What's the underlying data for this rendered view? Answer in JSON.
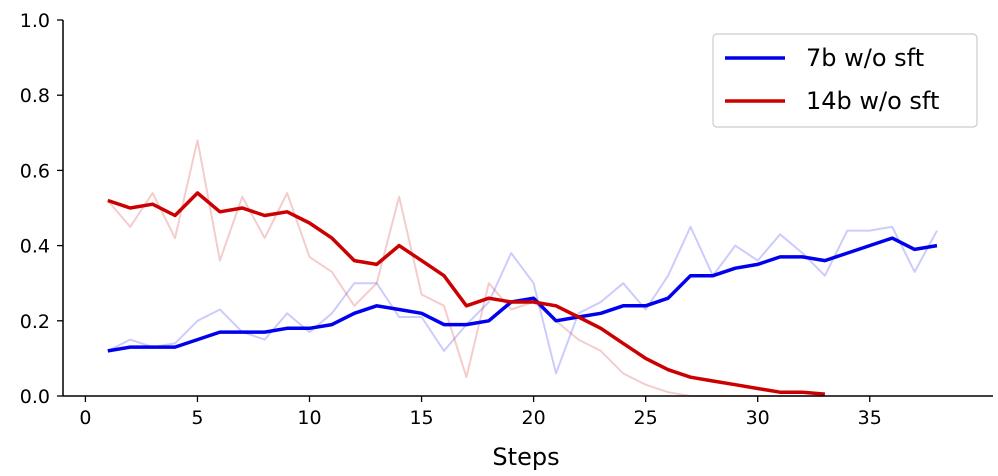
{
  "chart_data": {
    "type": "line",
    "title": "",
    "xlabel": "Steps",
    "ylabel": "",
    "xlim": [
      -1,
      40.5
    ],
    "ylim": [
      0,
      1.0
    ],
    "xticks": [
      0,
      5,
      10,
      15,
      20,
      25,
      30,
      35
    ],
    "yticks": [
      0.0,
      0.2,
      0.4,
      0.6,
      0.8,
      1.0
    ],
    "xtick_labels": [
      "0",
      "5",
      "10",
      "15",
      "20",
      "25",
      "30",
      "35"
    ],
    "ytick_labels": [
      "0.0",
      "0.2",
      "0.4",
      "0.6",
      "0.8",
      "1.0"
    ],
    "grid": false,
    "legend_position": "top-right",
    "series": [
      {
        "name": "7b w/o sft",
        "color": "#0000ee",
        "x": [
          1,
          2,
          3,
          4,
          5,
          6,
          7,
          8,
          9,
          10,
          11,
          12,
          13,
          14,
          15,
          16,
          17,
          18,
          19,
          20,
          21,
          22,
          23,
          24,
          25,
          26,
          27,
          28,
          29,
          30,
          31,
          32,
          33,
          34,
          35,
          36,
          37,
          38
        ],
        "raw": [
          0.12,
          0.15,
          0.13,
          0.14,
          0.2,
          0.23,
          0.17,
          0.15,
          0.22,
          0.17,
          0.22,
          0.3,
          0.3,
          0.21,
          0.21,
          0.12,
          0.19,
          0.25,
          0.38,
          0.3,
          0.06,
          0.22,
          0.25,
          0.3,
          0.23,
          0.32,
          0.45,
          0.32,
          0.4,
          0.36,
          0.43,
          0.38,
          0.32,
          0.44,
          0.44,
          0.45,
          0.33,
          0.44
        ],
        "smoothed": [
          0.12,
          0.13,
          0.13,
          0.13,
          0.15,
          0.17,
          0.17,
          0.17,
          0.18,
          0.18,
          0.19,
          0.22,
          0.24,
          0.23,
          0.22,
          0.19,
          0.19,
          0.2,
          0.25,
          0.26,
          0.2,
          0.21,
          0.22,
          0.24,
          0.24,
          0.26,
          0.32,
          0.32,
          0.34,
          0.35,
          0.37,
          0.37,
          0.36,
          0.38,
          0.4,
          0.42,
          0.39,
          0.4
        ]
      },
      {
        "name": "14b w/o sft",
        "color": "#cc0000",
        "x": [
          1,
          2,
          3,
          4,
          5,
          6,
          7,
          8,
          9,
          10,
          11,
          12,
          13,
          14,
          15,
          16,
          17,
          18,
          19,
          20,
          21,
          22,
          23,
          24,
          25,
          26,
          27,
          28,
          29,
          30,
          31,
          32,
          33
        ],
        "raw": [
          0.52,
          0.45,
          0.54,
          0.42,
          0.68,
          0.36,
          0.53,
          0.42,
          0.54,
          0.37,
          0.33,
          0.24,
          0.3,
          0.53,
          0.27,
          0.24,
          0.05,
          0.3,
          0.23,
          0.25,
          0.2,
          0.15,
          0.12,
          0.06,
          0.03,
          0.01,
          0.0,
          0.0,
          0.0,
          0.0,
          0.0,
          0.0,
          0.0
        ],
        "smoothed": [
          0.52,
          0.5,
          0.51,
          0.48,
          0.54,
          0.49,
          0.5,
          0.48,
          0.49,
          0.46,
          0.42,
          0.36,
          0.35,
          0.4,
          0.36,
          0.32,
          0.24,
          0.26,
          0.25,
          0.25,
          0.24,
          0.21,
          0.18,
          0.14,
          0.1,
          0.07,
          0.05,
          0.04,
          0.03,
          0.02,
          0.01,
          0.01,
          0.005
        ]
      }
    ]
  }
}
